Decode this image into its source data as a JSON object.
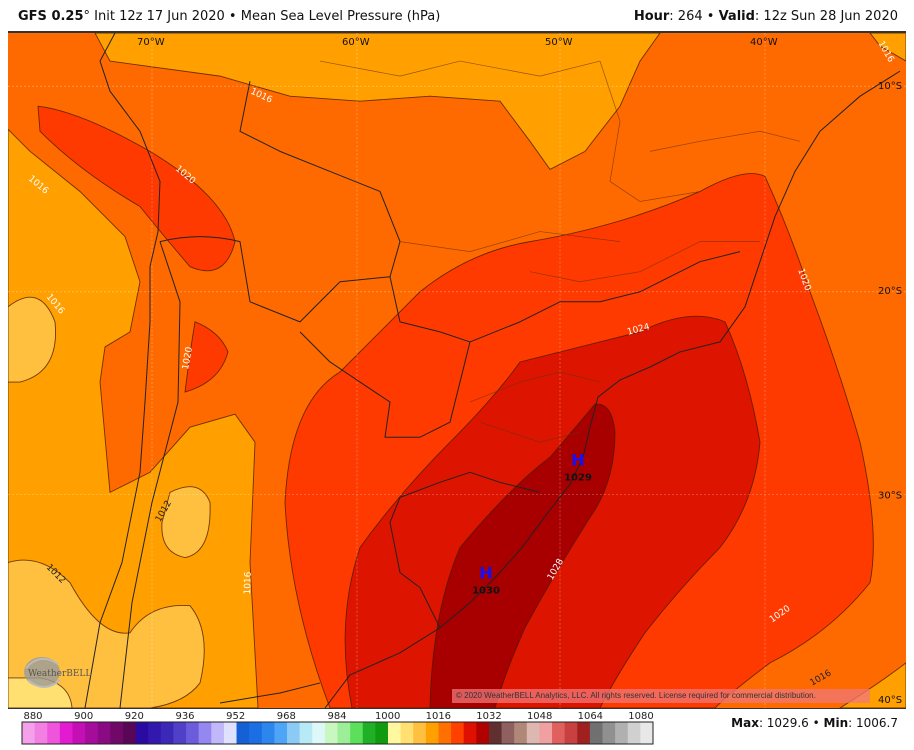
{
  "header": {
    "model": "GFS 0.25",
    "degree": "°",
    "init": "Init 12z 17 Jun 2020",
    "separator": "•",
    "field": "Mean Sea Level Pressure (hPa)",
    "hour_label": "Hour",
    "hour_value": ": 264",
    "valid_label": "Valid",
    "valid_value": ": 12z Sun 28 Jun 2020"
  },
  "map": {
    "longitude_labels": [
      "70°W",
      "60°W",
      "50°W",
      "40°W"
    ],
    "latitude_labels": [
      "10°S",
      "20°S",
      "30°S",
      "40°S"
    ],
    "contour_labels": [
      "1016",
      "1016",
      "1020",
      "1016",
      "1020",
      "1012",
      "1012",
      "1016",
      "1024",
      "1020",
      "1028",
      "1020",
      "1016",
      "1016"
    ],
    "highs": [
      {
        "symbol": "H",
        "value": "1029"
      },
      {
        "symbol": "H",
        "value": "1030"
      }
    ],
    "fill_colors": {
      "1008-1012": "#ffc040",
      "1012-1016": "#ffa000",
      "1016-1020": "#ff6a00",
      "1020-1024": "#ff3a00",
      "1024-1028": "#dd1500",
      "1028-1032": "#a80000"
    },
    "high_color": "#1010ff",
    "copyright": "© 2020 WeatherBELL Analytics, LLC. All rights reserved. License required for commercial distribution.",
    "watermark": "WeatherBELL"
  },
  "colorbar": {
    "labels": [
      "880",
      "900",
      "920",
      "936",
      "952",
      "968",
      "984",
      "1000",
      "1016",
      "1032",
      "1048",
      "1064",
      "1080"
    ],
    "colors": [
      "#f5a0ea",
      "#f27fe2",
      "#ee55dc",
      "#e21ad0",
      "#c40fb4",
      "#a60c9c",
      "#8a0a84",
      "#700868",
      "#5a0656",
      "#2a0aa0",
      "#3218ae",
      "#3c28b8",
      "#5040c8",
      "#6c5cdc",
      "#9488f0",
      "#c0b8fa",
      "#e0e0ff",
      "#1460d4",
      "#1c6ee4",
      "#2c86ee",
      "#4ea4f6",
      "#8ccaf6",
      "#b8eaf6",
      "#def8fa",
      "#c8f8c0",
      "#9cee98",
      "#5ce05c",
      "#20b028",
      "#109a10",
      "#fff8a0",
      "#ffe070",
      "#ffc040",
      "#ffa000",
      "#ff7000",
      "#ff4000",
      "#e01000",
      "#b00000",
      "#603030",
      "#906060",
      "#b08878",
      "#dcb8b0",
      "#f0a0a0",
      "#e06060",
      "#c84040",
      "#a02020",
      "#707070",
      "#909090",
      "#b0b0b0",
      "#d0d0d0",
      "#e8e8e8"
    ]
  },
  "stats": {
    "max_label": "Max",
    "max_value": ": 1029.6",
    "separator": "•",
    "min_label": "Min",
    "min_value": ": 1006.7"
  }
}
